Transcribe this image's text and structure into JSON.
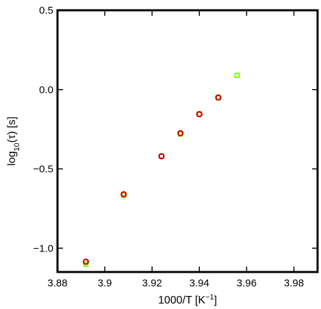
{
  "chart_data": {
    "type": "scatter",
    "title": "",
    "xlabel": {
      "base": "1000/T [K",
      "sup": "−1",
      "tail": "]"
    },
    "ylabel": {
      "base": "log",
      "sub": "10",
      "tail": "(τ) [s]"
    },
    "xlim": [
      3.88,
      3.99
    ],
    "ylim": [
      -1.15,
      0.5
    ],
    "x_ticks": [
      {
        "value": 3.88,
        "label": "3.88"
      },
      {
        "value": 3.9,
        "label": "3.9"
      },
      {
        "value": 3.92,
        "label": "3.92"
      },
      {
        "value": 3.94,
        "label": "3.94"
      },
      {
        "value": 3.96,
        "label": "3.96"
      },
      {
        "value": 3.98,
        "label": "3.98"
      }
    ],
    "y_ticks": [
      {
        "value": 0.5,
        "label": "0.5"
      },
      {
        "value": 0.0,
        "label": "0.0"
      },
      {
        "value": -0.5,
        "label": "−0.5"
      },
      {
        "value": -1.0,
        "label": "−1.0"
      }
    ],
    "grid": false,
    "series": [
      {
        "marker": "square",
        "color": "#7fff00",
        "x": [
          3.892,
          3.908,
          3.924,
          3.932,
          3.94,
          3.948,
          3.956
        ],
        "y": [
          -1.1,
          -0.665,
          -0.42,
          -0.28,
          -0.155,
          -0.05,
          0.09
        ]
      },
      {
        "marker": "circle",
        "color": "#cc0000",
        "x": [
          3.892,
          3.908,
          3.924,
          3.932,
          3.94,
          3.948
        ],
        "y": [
          -1.085,
          -0.66,
          -0.42,
          -0.275,
          -0.155,
          -0.05
        ]
      }
    ]
  }
}
